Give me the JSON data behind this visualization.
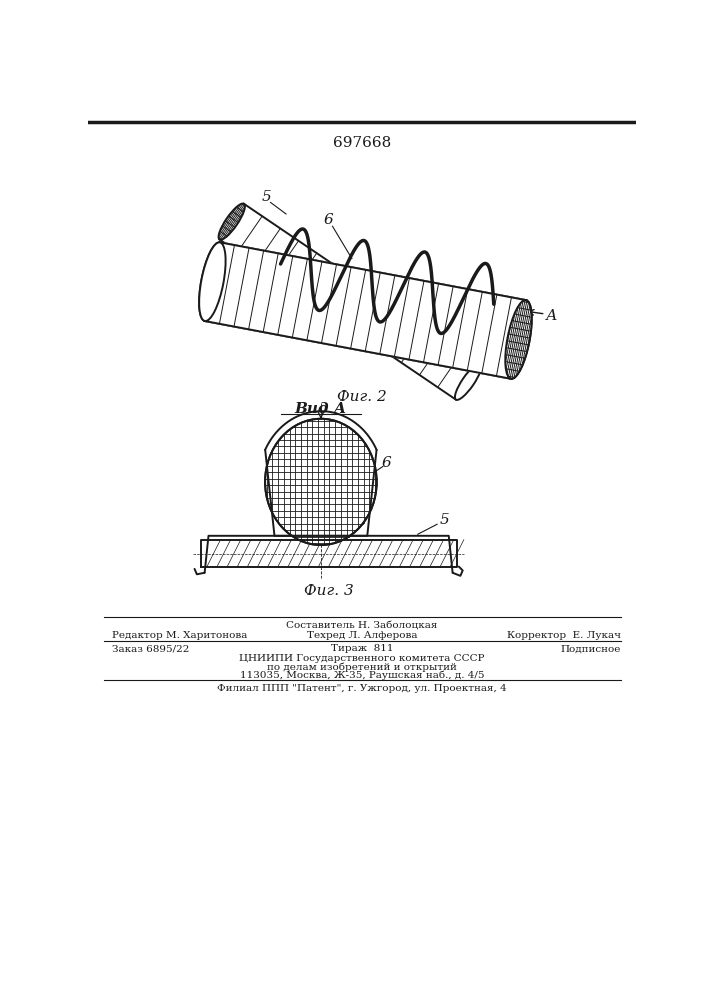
{
  "patent_number": "697668",
  "background_color": "#ffffff",
  "line_color": "#1a1a1a",
  "fig2_label": "Фиг. 2",
  "fig3_label": "Фиг. 3",
  "view_label": "Вид А",
  "label_6_fig2": "6",
  "label_5_fig2": "5",
  "label_A_fig2": "А",
  "label_6_fig3": "6",
  "label_5_fig3": "5",
  "footer_line1_top": "Составитель Н. Заболоцкая",
  "footer_line1_left": "Редактор М. Харитонова",
  "footer_line1_center": "Техред Л. Алферова",
  "footer_line1_right": "Корректор  Е. Лукач",
  "footer_line2_left": "Заказ 6895/22",
  "footer_line2_center": "Тираж  811",
  "footer_line2_right": "Подписное",
  "footer_line3": "ЦНИИПИ Государственного комитета СССР",
  "footer_line4": "по делам изобретений и открытий",
  "footer_line5": "113035, Москва, Ж-35, Раушская наб., д. 4/5",
  "footer_line6": "Филиал ППП \"Патент\", г. Ужгород, ул. Проектная, 4"
}
